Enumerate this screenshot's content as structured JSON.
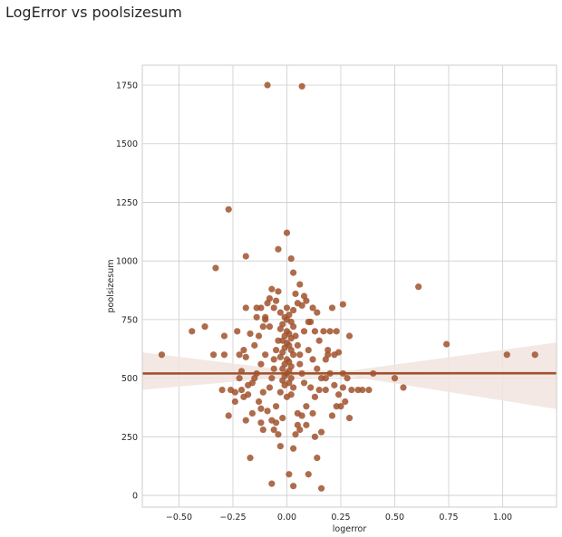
{
  "title": "LogError vs poolsizesum",
  "chart_data": {
    "type": "scatter",
    "xlabel": "logerror",
    "ylabel": "poolsizesum",
    "xlim": [
      -0.67,
      1.25
    ],
    "ylim": [
      -50,
      1835
    ],
    "xticks": [
      -0.5,
      -0.25,
      0.0,
      0.25,
      0.5,
      0.75,
      1.0
    ],
    "xtick_labels": [
      "−0.50",
      "−0.25",
      "0.00",
      "0.25",
      "0.50",
      "0.75",
      "1.00"
    ],
    "yticks": [
      0,
      250,
      500,
      750,
      1000,
      1250,
      1500,
      1750
    ],
    "ytick_labels": [
      "0",
      "250",
      "500",
      "750",
      "1000",
      "1250",
      "1500",
      "1750"
    ],
    "grid": true,
    "colors": {
      "points": "#a0522d",
      "line": "#a0522d",
      "band": "#f1e4de",
      "grid": "#cccccc",
      "spine": "#cccccc"
    },
    "points": [
      [
        -0.09,
        1750
      ],
      [
        0.07,
        1745
      ],
      [
        -0.27,
        1220
      ],
      [
        0.0,
        1120
      ],
      [
        -0.19,
        1020
      ],
      [
        -0.33,
        970
      ],
      [
        -0.04,
        1050
      ],
      [
        0.02,
        1010
      ],
      [
        0.61,
        890
      ],
      [
        0.74,
        645
      ],
      [
        1.02,
        600
      ],
      [
        1.15,
        600
      ],
      [
        -0.58,
        600
      ],
      [
        -0.44,
        700
      ],
      [
        -0.38,
        720
      ],
      [
        -0.29,
        680
      ],
      [
        -0.34,
        600
      ],
      [
        -0.29,
        600
      ],
      [
        -0.14,
        800
      ],
      [
        -0.19,
        800
      ],
      [
        -0.1,
        760
      ],
      [
        0.21,
        800
      ],
      [
        0.26,
        815
      ],
      [
        0.29,
        680
      ],
      [
        0.2,
        700
      ],
      [
        0.4,
        520
      ],
      [
        0.5,
        500
      ],
      [
        0.54,
        460
      ],
      [
        0.38,
        450
      ],
      [
        0.28,
        500
      ],
      [
        0.26,
        520
      ],
      [
        0.24,
        610
      ],
      [
        0.19,
        620
      ],
      [
        0.18,
        580
      ],
      [
        -0.2,
        620
      ],
      [
        -0.22,
        500
      ],
      [
        -0.18,
        470
      ],
      [
        -0.21,
        450
      ],
      [
        -0.2,
        420
      ],
      [
        -0.24,
        400
      ],
      [
        -0.27,
        340
      ],
      [
        -0.16,
        350
      ],
      [
        -0.19,
        320
      ],
      [
        -0.12,
        310
      ],
      [
        -0.11,
        280
      ],
      [
        -0.17,
        160
      ],
      [
        0.14,
        160
      ],
      [
        0.1,
        90
      ],
      [
        -0.03,
        210
      ],
      [
        0.03,
        200
      ],
      [
        0.13,
        250
      ],
      [
        0.16,
        270
      ],
      [
        0.01,
        90
      ],
      [
        0.03,
        40
      ],
      [
        -0.07,
        50
      ],
      [
        0.16,
        30
      ],
      [
        0.21,
        340
      ],
      [
        0.29,
        330
      ],
      [
        0.23,
        380
      ],
      [
        0.25,
        380
      ],
      [
        0.27,
        400
      ],
      [
        0.09,
        300
      ],
      [
        -0.02,
        330
      ],
      [
        0.06,
        280
      ],
      [
        -0.06,
        280
      ],
      [
        -0.04,
        260
      ],
      [
        0.04,
        260
      ],
      [
        -0.05,
        380
      ],
      [
        0.05,
        350
      ],
      [
        0.0,
        420
      ],
      [
        0.02,
        430
      ],
      [
        -0.03,
        440
      ],
      [
        0.03,
        460
      ],
      [
        -0.01,
        470
      ],
      [
        0.01,
        480
      ],
      [
        -0.02,
        490
      ],
      [
        0.02,
        500
      ],
      [
        -0.01,
        510
      ],
      [
        0.0,
        520
      ],
      [
        0.01,
        530
      ],
      [
        -0.02,
        540
      ],
      [
        0.02,
        550
      ],
      [
        -0.01,
        560
      ],
      [
        0.01,
        570
      ],
      [
        0.0,
        580
      ],
      [
        -0.03,
        590
      ],
      [
        0.03,
        600
      ],
      [
        -0.02,
        610
      ],
      [
        0.02,
        620
      ],
      [
        -0.01,
        630
      ],
      [
        0.01,
        640
      ],
      [
        0.0,
        650
      ],
      [
        -0.02,
        660
      ],
      [
        0.02,
        670
      ],
      [
        -0.01,
        680
      ],
      [
        0.01,
        690
      ],
      [
        0.0,
        700
      ],
      [
        -0.03,
        710
      ],
      [
        0.03,
        720
      ],
      [
        -0.02,
        730
      ],
      [
        0.02,
        740
      ],
      [
        0.0,
        750
      ],
      [
        -0.01,
        760
      ],
      [
        0.01,
        770
      ],
      [
        -0.03,
        780
      ],
      [
        0.03,
        790
      ],
      [
        0.0,
        800
      ],
      [
        0.05,
        820
      ],
      [
        -0.05,
        830
      ],
      [
        0.08,
        850
      ],
      [
        -0.08,
        840
      ],
      [
        0.04,
        860
      ],
      [
        -0.04,
        870
      ],
      [
        0.06,
        900
      ],
      [
        -0.07,
        880
      ],
      [
        0.09,
        830
      ],
      [
        -0.09,
        820
      ],
      [
        0.03,
        950
      ],
      [
        0.07,
        810
      ],
      [
        -0.06,
        800
      ],
      [
        0.12,
        800
      ],
      [
        -0.12,
        800
      ],
      [
        0.14,
        780
      ],
      [
        -0.14,
        760
      ],
      [
        0.11,
        740
      ],
      [
        -0.11,
        720
      ],
      [
        0.13,
        700
      ],
      [
        -0.13,
        680
      ],
      [
        0.15,
        660
      ],
      [
        -0.15,
        640
      ],
      [
        0.1,
        620
      ],
      [
        -0.1,
        600
      ],
      [
        0.12,
        580
      ],
      [
        -0.12,
        560
      ],
      [
        0.14,
        540
      ],
      [
        -0.14,
        520
      ],
      [
        0.16,
        500
      ],
      [
        -0.16,
        480
      ],
      [
        0.11,
        460
      ],
      [
        -0.11,
        440
      ],
      [
        0.13,
        420
      ],
      [
        -0.13,
        400
      ],
      [
        0.09,
        380
      ],
      [
        -0.09,
        360
      ],
      [
        0.07,
        340
      ],
      [
        -0.07,
        320
      ],
      [
        0.05,
        300
      ],
      [
        -0.05,
        310
      ],
      [
        0.06,
        560
      ],
      [
        -0.06,
        540
      ],
      [
        0.07,
        520
      ],
      [
        -0.07,
        500
      ],
      [
        0.08,
        480
      ],
      [
        -0.08,
        460
      ],
      [
        0.04,
        680
      ],
      [
        -0.04,
        660
      ],
      [
        0.05,
        640
      ],
      [
        -0.05,
        620
      ],
      [
        0.06,
        600
      ],
      [
        -0.06,
        580
      ],
      [
        0.08,
        700
      ],
      [
        -0.08,
        720
      ],
      [
        0.1,
        740
      ],
      [
        -0.1,
        750
      ],
      [
        0.18,
        450
      ],
      [
        -0.18,
        430
      ],
      [
        0.2,
        520
      ],
      [
        -0.21,
        530
      ],
      [
        0.17,
        700
      ],
      [
        -0.17,
        690
      ],
      [
        0.19,
        600
      ],
      [
        -0.19,
        590
      ],
      [
        0.22,
        470
      ],
      [
        0.24,
        430
      ],
      [
        -0.24,
        440
      ],
      [
        0.26,
        460
      ],
      [
        0.3,
        450
      ],
      [
        0.33,
        450
      ],
      [
        0.35,
        450
      ],
      [
        -0.26,
        450
      ],
      [
        -0.3,
        450
      ],
      [
        0.15,
        450
      ],
      [
        0.18,
        500
      ],
      [
        -0.15,
        500
      ],
      [
        0.22,
        600
      ],
      [
        -0.22,
        600
      ],
      [
        0.23,
        700
      ],
      [
        -0.23,
        700
      ],
      [
        0.12,
        350
      ],
      [
        -0.12,
        370
      ]
    ],
    "regression": {
      "x": [
        -0.67,
        1.25
      ],
      "y": [
        520,
        521
      ]
    },
    "ci_band": {
      "x": [
        -0.67,
        0.0,
        0.3,
        1.25
      ],
      "upper": [
        610,
        535,
        533,
        652
      ],
      "lower": [
        450,
        505,
        507,
        368
      ]
    }
  }
}
